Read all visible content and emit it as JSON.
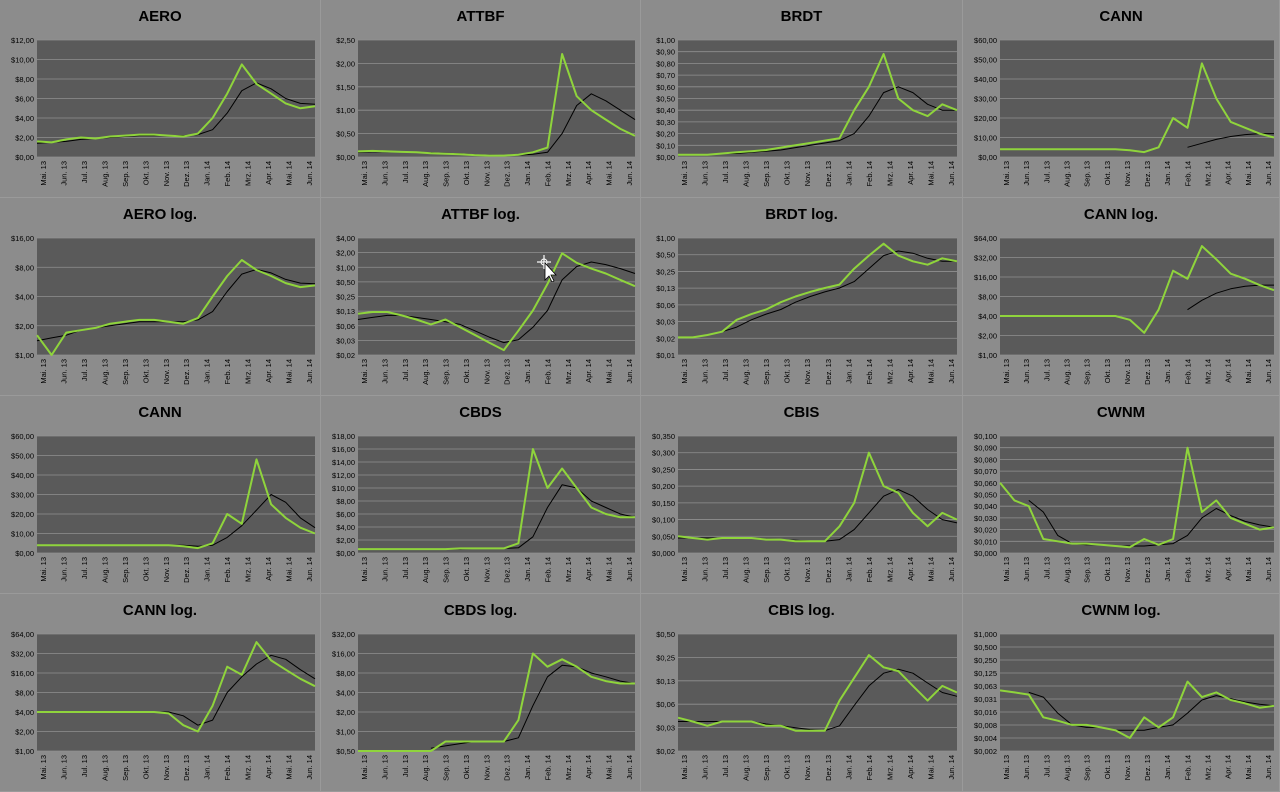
{
  "colors": {
    "background": "#8a8a8a",
    "plot": "#5a5a5a",
    "grid": "#909090",
    "price": "#8fd43c",
    "average": "#000000"
  },
  "charts": [
    {
      "title": "AERO",
      "scale": "linear",
      "yticks": [
        "$0,00",
        "$2,00",
        "$4,00",
        "$6,00",
        "$8,00",
        "$10,00",
        "$12,00"
      ],
      "ymax": 12,
      "xticks": [
        "Mai. 13",
        "Jun. 13",
        "Jul. 13",
        "Aug. 13",
        "Sep. 13",
        "Okt. 13",
        "Nov. 13",
        "Dez. 13",
        "Jan. 14",
        "Feb. 14",
        "Mrz. 14",
        "Apr. 14",
        "Mai. 14",
        "Jun. 14"
      ],
      "price": [
        1.6,
        1.5,
        1.8,
        2.0,
        1.9,
        2.1,
        2.2,
        2.3,
        2.3,
        2.2,
        2.1,
        2.4,
        4.0,
        6.5,
        9.5,
        7.5,
        6.5,
        5.5,
        5.0,
        5.2
      ],
      "average": [
        1.4,
        1.5,
        1.6,
        1.8,
        1.9,
        2.0,
        2.1,
        2.2,
        2.2,
        2.2,
        2.2,
        2.3,
        2.8,
        4.5,
        6.8,
        7.6,
        7.0,
        6.0,
        5.5,
        5.4
      ]
    },
    {
      "title": "ATTBF",
      "scale": "linear",
      "yticks": [
        "$0,00",
        "$0,50",
        "$1,00",
        "$1,50",
        "$2,00",
        "$2,50"
      ],
      "ymax": 2.5,
      "xticks": [
        "Mai. 13",
        "Jun. 13",
        "Jul. 13",
        "Aug. 13",
        "Sep. 13",
        "Okt. 13",
        "Nov. 13",
        "Dez. 13",
        "Jan. 14",
        "Feb. 14",
        "Mrz. 14",
        "Apr. 14",
        "Mai. 14",
        "Jun. 14"
      ],
      "price": [
        0.12,
        0.13,
        0.12,
        0.11,
        0.1,
        0.08,
        0.07,
        0.06,
        0.04,
        0.03,
        0.03,
        0.05,
        0.1,
        0.2,
        2.2,
        1.3,
        1.0,
        0.8,
        0.6,
        0.45
      ],
      "average": [
        0.1,
        0.11,
        0.11,
        0.11,
        0.1,
        0.09,
        0.08,
        0.07,
        0.05,
        0.04,
        0.03,
        0.04,
        0.06,
        0.1,
        0.5,
        1.1,
        1.35,
        1.2,
        1.0,
        0.8
      ]
    },
    {
      "title": "BRDT",
      "scale": "linear",
      "yticks": [
        "$0,00",
        "$0,10",
        "$0,20",
        "$0,30",
        "$0,40",
        "$0,50",
        "$0,60",
        "$0,70",
        "$0,80",
        "$0,90",
        "$1,00"
      ],
      "ymax": 1.0,
      "xticks": [
        "Mai. 13",
        "Jun. 13",
        "Jul. 13",
        "Aug. 13",
        "Sep. 13",
        "Okt. 13",
        "Nov. 13",
        "Dez. 13",
        "Jan. 14",
        "Feb. 14",
        "Mrz. 14",
        "Apr. 14",
        "Mai. 14",
        "Jun. 14"
      ],
      "price": [
        0.02,
        0.02,
        0.02,
        0.03,
        0.04,
        0.05,
        0.06,
        0.08,
        0.1,
        0.12,
        0.14,
        0.16,
        0.4,
        0.6,
        0.88,
        0.5,
        0.4,
        0.35,
        0.45,
        0.4
      ],
      "average": [
        0.02,
        0.02,
        0.02,
        0.03,
        0.03,
        0.04,
        0.05,
        0.06,
        0.08,
        0.1,
        0.12,
        0.14,
        0.2,
        0.35,
        0.55,
        0.6,
        0.55,
        0.45,
        0.4,
        0.4
      ]
    },
    {
      "title": "CANN",
      "scale": "linear",
      "yticks": [
        "$0,00",
        "$10,00",
        "$20,00",
        "$30,00",
        "$40,00",
        "$50,00",
        "$60,00"
      ],
      "ymax": 60,
      "xticks": [
        "Mai. 13",
        "Jun. 13",
        "Jul. 13",
        "Aug. 13",
        "Sep. 13",
        "Okt. 13",
        "Nov. 13",
        "Dez. 13",
        "Jan. 14",
        "Feb. 14",
        "Mrz. 14",
        "Apr. 14",
        "Mai. 14",
        "Jun. 14"
      ],
      "price": [
        4,
        4,
        4,
        4,
        4,
        4,
        4,
        4,
        4,
        3.5,
        2.5,
        5,
        20,
        15,
        48,
        30,
        18,
        15,
        12,
        10
      ],
      "average": [
        null,
        null,
        null,
        null,
        null,
        null,
        null,
        null,
        null,
        null,
        null,
        null,
        null,
        5,
        7,
        9,
        10.5,
        11.5,
        12,
        12
      ]
    },
    {
      "title": "AERO log.",
      "scale": "log",
      "yticks": [
        "$1,00",
        "$2,00",
        "$4,00",
        "$8,00",
        "$16,00"
      ],
      "ymin": 1,
      "ymax": 16,
      "xticks": [
        "Mai. 13",
        "Jun. 13",
        "Jul. 13",
        "Aug. 13",
        "Sep. 13",
        "Okt. 13",
        "Nov. 13",
        "Dez. 13",
        "Jan. 14",
        "Feb. 14",
        "Mrz. 14",
        "Apr. 14",
        "Mai. 14",
        "Jun. 14"
      ],
      "price": [
        1.6,
        1.0,
        1.7,
        1.8,
        1.9,
        2.1,
        2.2,
        2.3,
        2.3,
        2.2,
        2.1,
        2.4,
        4.0,
        6.5,
        9.5,
        7.5,
        6.5,
        5.5,
        5.0,
        5.2
      ],
      "average": [
        1.4,
        1.5,
        1.6,
        1.8,
        1.9,
        2.0,
        2.1,
        2.2,
        2.2,
        2.2,
        2.2,
        2.3,
        2.8,
        4.5,
        6.8,
        7.6,
        7.0,
        6.0,
        5.5,
        5.4
      ]
    },
    {
      "title": "ATTBF log.",
      "scale": "log",
      "yticks": [
        "$0,02",
        "$0,03",
        "$0,06",
        "$0,13",
        "$0,25",
        "$0,50",
        "$1,00",
        "$2,00",
        "$4,00"
      ],
      "ymin": 0.02,
      "ymax": 4,
      "xticks": [
        "Mai. 13",
        "Jun. 13",
        "Jul. 13",
        "Aug. 13",
        "Sep. 13",
        "Okt. 13",
        "Nov. 13",
        "Dez. 13",
        "Jan. 14",
        "Feb. 14",
        "Mrz. 14",
        "Apr. 14",
        "Mai. 14",
        "Jun. 14"
      ],
      "price": [
        0.13,
        0.14,
        0.14,
        0.12,
        0.1,
        0.08,
        0.1,
        0.07,
        0.05,
        0.035,
        0.025,
        0.06,
        0.15,
        0.5,
        2.0,
        1.3,
        1.0,
        0.8,
        0.6,
        0.45
      ],
      "average": [
        0.1,
        0.11,
        0.12,
        0.12,
        0.11,
        0.1,
        0.09,
        0.08,
        0.06,
        0.045,
        0.035,
        0.04,
        0.07,
        0.15,
        0.6,
        1.1,
        1.35,
        1.2,
        1.0,
        0.8
      ]
    },
    {
      "title": "BRDT log.",
      "scale": "log",
      "yticks": [
        "$0,01",
        "$0,02",
        "$0,03",
        "$0,06",
        "$0,13",
        "$0,25",
        "$0,50",
        "$1,00"
      ],
      "ymin": 0.01,
      "ymax": 1.0,
      "xticks": [
        "Mai. 13",
        "Jun. 13",
        "Jul. 13",
        "Aug. 13",
        "Sep. 13",
        "Okt. 13",
        "Nov. 13",
        "Dez. 13",
        "Jan. 14",
        "Feb. 14",
        "Mrz. 14",
        "Apr. 14",
        "Mai. 14",
        "Jun. 14"
      ],
      "price": [
        0.02,
        0.02,
        0.022,
        0.025,
        0.04,
        0.05,
        0.06,
        0.08,
        0.1,
        0.12,
        0.14,
        0.16,
        0.3,
        0.5,
        0.8,
        0.5,
        0.4,
        0.35,
        0.45,
        0.4
      ],
      "average": [
        0.02,
        0.02,
        0.022,
        0.025,
        0.03,
        0.04,
        0.05,
        0.06,
        0.08,
        0.1,
        0.12,
        0.14,
        0.18,
        0.3,
        0.5,
        0.6,
        0.55,
        0.45,
        0.4,
        0.4
      ]
    },
    {
      "title": "CANN log.",
      "scale": "log",
      "yticks": [
        "$1,00",
        "$2,00",
        "$4,00",
        "$8,00",
        "$16,00",
        "$32,00",
        "$64,00"
      ],
      "ymin": 1,
      "ymax": 64,
      "xticks": [
        "Mai. 13",
        "Jun. 13",
        "Jul. 13",
        "Aug. 13",
        "Sep. 13",
        "Okt. 13",
        "Nov. 13",
        "Dez. 13",
        "Jan. 14",
        "Feb. 14",
        "Mrz. 14",
        "Apr. 14",
        "Mai. 14",
        "Jun. 14"
      ],
      "price": [
        4,
        4,
        4,
        4,
        4,
        4,
        4,
        4,
        4,
        3.5,
        2.2,
        5,
        20,
        15,
        48,
        30,
        18,
        15,
        12,
        10
      ],
      "average": [
        null,
        null,
        null,
        null,
        null,
        null,
        null,
        null,
        null,
        null,
        null,
        null,
        null,
        5,
        7,
        9,
        10.5,
        11.5,
        12,
        12
      ]
    },
    {
      "title": "CANN",
      "scale": "linear",
      "yticks": [
        "$0,00",
        "$10,00",
        "$20,00",
        "$30,00",
        "$40,00",
        "$50,00",
        "$60,00"
      ],
      "ymax": 60,
      "xticks": [
        "Mai. 13",
        "Jun. 13",
        "Jul. 13",
        "Aug. 13",
        "Sep. 13",
        "Okt. 13",
        "Nov. 13",
        "Dez. 13",
        "Jan. 14",
        "Feb. 14",
        "Mrz. 14",
        "Apr. 14",
        "Mai. 14",
        "Jun. 14"
      ],
      "price": [
        4,
        4,
        4,
        4,
        4,
        4,
        4,
        4,
        4,
        4,
        3.5,
        2.5,
        5,
        20,
        15,
        48,
        25,
        18,
        13,
        10
      ],
      "average": [
        4,
        4,
        4,
        4,
        4,
        4,
        4,
        4,
        4,
        4,
        4,
        3.5,
        4,
        8,
        14,
        22,
        30,
        26,
        18,
        13
      ]
    },
    {
      "title": "CBDS",
      "scale": "linear",
      "yticks": [
        "$0,00",
        "$2,00",
        "$4,00",
        "$6,00",
        "$8,00",
        "$10,00",
        "$12,00",
        "$14,00",
        "$16,00",
        "$18,00"
      ],
      "ymax": 18,
      "xticks": [
        "Mai. 13",
        "Jun. 13",
        "Jul. 13",
        "Aug. 13",
        "Sep. 13",
        "Okt. 13",
        "Nov. 13",
        "Dez. 13",
        "Jan. 14",
        "Feb. 14",
        "Mrz. 14",
        "Apr. 14",
        "Mai. 14",
        "Jun. 14"
      ],
      "price": [
        0.6,
        0.6,
        0.6,
        0.6,
        0.6,
        0.6,
        0.6,
        0.7,
        0.7,
        0.7,
        0.7,
        1.5,
        16,
        10,
        13,
        10,
        7,
        6,
        5.5,
        5.5
      ],
      "average": [
        0.6,
        0.6,
        0.6,
        0.6,
        0.6,
        0.6,
        0.6,
        0.6,
        0.7,
        0.7,
        0.7,
        0.8,
        2.5,
        7,
        10.5,
        10,
        8,
        7,
        6,
        5.5
      ]
    },
    {
      "title": "CBIS",
      "scale": "linear",
      "yticks": [
        "$0,000",
        "$0,050",
        "$0,100",
        "$0,150",
        "$0,200",
        "$0,250",
        "$0,300",
        "$0,350"
      ],
      "ymax": 0.35,
      "xticks": [
        "Mai. 13",
        "Jun. 13",
        "Jul. 13",
        "Aug. 13",
        "Sep. 13",
        "Okt. 13",
        "Nov. 13",
        "Dez. 13",
        "Jan. 14",
        "Feb. 14",
        "Mrz. 14",
        "Apr. 14",
        "Mai. 14",
        "Jun. 14"
      ],
      "price": [
        0.05,
        0.045,
        0.04,
        0.045,
        0.045,
        0.045,
        0.04,
        0.04,
        0.035,
        0.035,
        0.035,
        0.08,
        0.15,
        0.3,
        0.2,
        0.18,
        0.12,
        0.08,
        0.12,
        0.1
      ],
      "average": [
        0.045,
        0.045,
        0.045,
        0.045,
        0.045,
        0.045,
        0.042,
        0.04,
        0.038,
        0.036,
        0.035,
        0.04,
        0.07,
        0.12,
        0.17,
        0.19,
        0.17,
        0.13,
        0.1,
        0.09
      ]
    },
    {
      "title": "CWNM",
      "scale": "linear",
      "yticks": [
        "$0,000",
        "$0,010",
        "$0,020",
        "$0,030",
        "$0,040",
        "$0,050",
        "$0,060",
        "$0,070",
        "$0,080",
        "$0,090",
        "$0,100"
      ],
      "ymax": 0.1,
      "xticks": [
        "Mai. 13",
        "Jun. 13",
        "Jul. 13",
        "Aug. 13",
        "Sep. 13",
        "Okt. 13",
        "Nov. 13",
        "Dez. 13",
        "Jan. 14",
        "Feb. 14",
        "Mrz. 14",
        "Apr. 14",
        "Mai. 14",
        "Jun. 14"
      ],
      "price": [
        0.06,
        0.045,
        0.04,
        0.012,
        0.01,
        0.008,
        0.008,
        0.007,
        0.006,
        0.005,
        0.012,
        0.007,
        0.012,
        0.09,
        0.035,
        0.045,
        0.03,
        0.025,
        0.02,
        0.022
      ],
      "average": [
        null,
        null,
        0.045,
        0.035,
        0.015,
        0.008,
        0.007,
        0.007,
        0.006,
        0.006,
        0.006,
        0.007,
        0.008,
        0.015,
        0.03,
        0.038,
        0.032,
        0.027,
        0.024,
        0.022
      ]
    },
    {
      "title": "CANN log.",
      "scale": "log",
      "yticks": [
        "$1,00",
        "$2,00",
        "$4,00",
        "$8,00",
        "$16,00",
        "$32,00",
        "$64,00"
      ],
      "ymin": 1,
      "ymax": 64,
      "xticks": [
        "Mai. 13",
        "Jun. 13",
        "Jul. 13",
        "Aug. 13",
        "Sep. 13",
        "Okt. 13",
        "Nov. 13",
        "Dez. 13",
        "Jan. 14",
        "Feb. 14",
        "Mrz. 14",
        "Apr. 14",
        "Mai. 14",
        "Jun. 14"
      ],
      "price": [
        4,
        4,
        4,
        4,
        4,
        4,
        4,
        4,
        4,
        3.8,
        2.5,
        2.0,
        5,
        20,
        15,
        48,
        25,
        18,
        13,
        10
      ],
      "average": [
        4,
        4,
        4,
        4,
        4,
        4,
        4,
        4,
        4,
        4,
        3.5,
        2.5,
        3,
        8,
        14,
        22,
        30,
        26,
        18,
        13
      ]
    },
    {
      "title": "CBDS log.",
      "scale": "log",
      "yticks": [
        "$0,50",
        "$1,00",
        "$2,00",
        "$4,00",
        "$8,00",
        "$16,00",
        "$32,00"
      ],
      "ymin": 0.5,
      "ymax": 32,
      "xticks": [
        "Mai. 13",
        "Jun. 13",
        "Jul. 13",
        "Aug. 13",
        "Sep. 13",
        "Okt. 13",
        "Nov. 13",
        "Dez. 13",
        "Jan. 14",
        "Feb. 14",
        "Mrz. 14",
        "Apr. 14",
        "Mai. 14",
        "Jun. 14"
      ],
      "price": [
        0.5,
        0.5,
        0.5,
        0.5,
        0.5,
        0.5,
        0.7,
        0.7,
        0.7,
        0.7,
        0.7,
        1.5,
        16,
        10,
        13,
        10,
        7,
        6,
        5.5,
        5.5
      ],
      "average": [
        null,
        null,
        null,
        null,
        null,
        0.55,
        0.6,
        0.65,
        0.7,
        0.7,
        0.7,
        0.8,
        2.5,
        7,
        10.5,
        10,
        8,
        7,
        6,
        5.5
      ]
    },
    {
      "title": "CBIS log.",
      "scale": "log",
      "yticks": [
        "$0,02",
        "$0,03",
        "$0,06",
        "$0,13",
        "$0,25",
        "$0,50"
      ],
      "ymin": 0.02,
      "ymax": 0.5,
      "xticks": [
        "Mai. 13",
        "Jun. 13",
        "Jul. 13",
        "Aug. 13",
        "Sep. 13",
        "Okt. 13",
        "Nov. 13",
        "Dez. 13",
        "Jan. 14",
        "Feb. 14",
        "Mrz. 14",
        "Apr. 14",
        "Mai. 14",
        "Jun. 14"
      ],
      "price": [
        0.05,
        0.045,
        0.04,
        0.045,
        0.045,
        0.045,
        0.04,
        0.04,
        0.035,
        0.035,
        0.035,
        0.08,
        0.15,
        0.28,
        0.2,
        0.18,
        0.12,
        0.08,
        0.12,
        0.1
      ],
      "average": [
        0.045,
        0.045,
        0.045,
        0.045,
        0.045,
        0.045,
        0.042,
        0.04,
        0.038,
        0.036,
        0.035,
        0.04,
        0.07,
        0.12,
        0.17,
        0.19,
        0.17,
        0.13,
        0.1,
        0.09
      ]
    },
    {
      "title": "CWNM log.",
      "scale": "log",
      "yticks": [
        "$0,002",
        "$0,004",
        "$0,008",
        "$0,016",
        "$0,031",
        "$0,063",
        "$0,125",
        "$0,250",
        "$0,500",
        "$1,000"
      ],
      "ymin": 0.002,
      "ymax": 1.0,
      "xticks": [
        "Mai. 13",
        "Jun. 13",
        "Jul. 13",
        "Aug. 13",
        "Sep. 13",
        "Okt. 13",
        "Nov. 13",
        "Dez. 13",
        "Jan. 14",
        "Feb. 14",
        "Mrz. 14",
        "Apr. 14",
        "Mai. 14",
        "Jun. 14"
      ],
      "price": [
        0.05,
        0.045,
        0.04,
        0.012,
        0.01,
        0.008,
        0.008,
        0.007,
        0.006,
        0.004,
        0.012,
        0.007,
        0.012,
        0.08,
        0.035,
        0.045,
        0.03,
        0.025,
        0.02,
        0.022
      ],
      "average": [
        null,
        null,
        0.045,
        0.035,
        0.015,
        0.008,
        0.007,
        0.007,
        0.006,
        0.006,
        0.006,
        0.007,
        0.008,
        0.015,
        0.03,
        0.038,
        0.032,
        0.027,
        0.024,
        0.022
      ]
    }
  ],
  "chart_data": [
    {
      "type": "line",
      "title": "AERO"
    },
    {
      "type": "line",
      "title": "ATTBF"
    },
    {
      "type": "line",
      "title": "BRDT"
    },
    {
      "type": "line",
      "title": "CANN"
    },
    {
      "type": "line",
      "title": "AERO log."
    },
    {
      "type": "line",
      "title": "ATTBF log."
    },
    {
      "type": "line",
      "title": "BRDT log."
    },
    {
      "type": "line",
      "title": "CANN log."
    },
    {
      "type": "line",
      "title": "CANN"
    },
    {
      "type": "line",
      "title": "CBDS"
    },
    {
      "type": "line",
      "title": "CBIS"
    },
    {
      "type": "line",
      "title": "CWNM"
    },
    {
      "type": "line",
      "title": "CANN log."
    },
    {
      "type": "line",
      "title": "CBDS log."
    },
    {
      "type": "line",
      "title": "CBIS log."
    },
    {
      "type": "line",
      "title": "CWNM log."
    }
  ]
}
